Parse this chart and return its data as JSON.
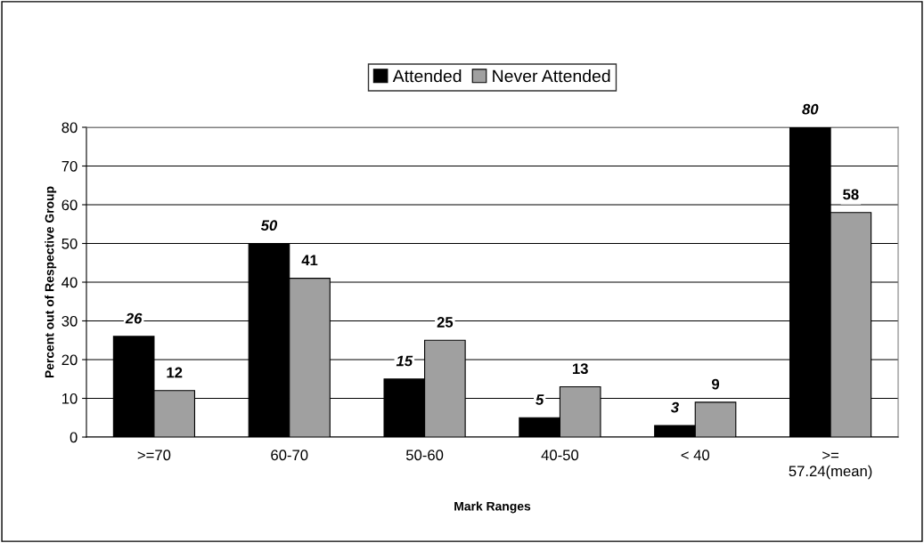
{
  "chart_data": {
    "type": "bar",
    "xlabel": "Mark Ranges",
    "ylabel": "Percent out of Respective Group",
    "categories": [
      ">=70",
      "60-70",
      "50-60",
      "40-50",
      "< 40",
      ">=\n57.24(mean)"
    ],
    "series": [
      {
        "name": "Attended",
        "color": "#000000",
        "values": [
          26,
          50,
          15,
          5,
          3,
          80
        ]
      },
      {
        "name": "Never Attended",
        "color": "#a0a0a0",
        "values": [
          12,
          41,
          25,
          13,
          9,
          58
        ]
      }
    ],
    "ylim": [
      0,
      80
    ],
    "yticks": [
      0,
      10,
      20,
      30,
      40,
      50,
      60,
      70,
      80
    ],
    "grid": "y",
    "legend": "top",
    "data_labels": true
  }
}
